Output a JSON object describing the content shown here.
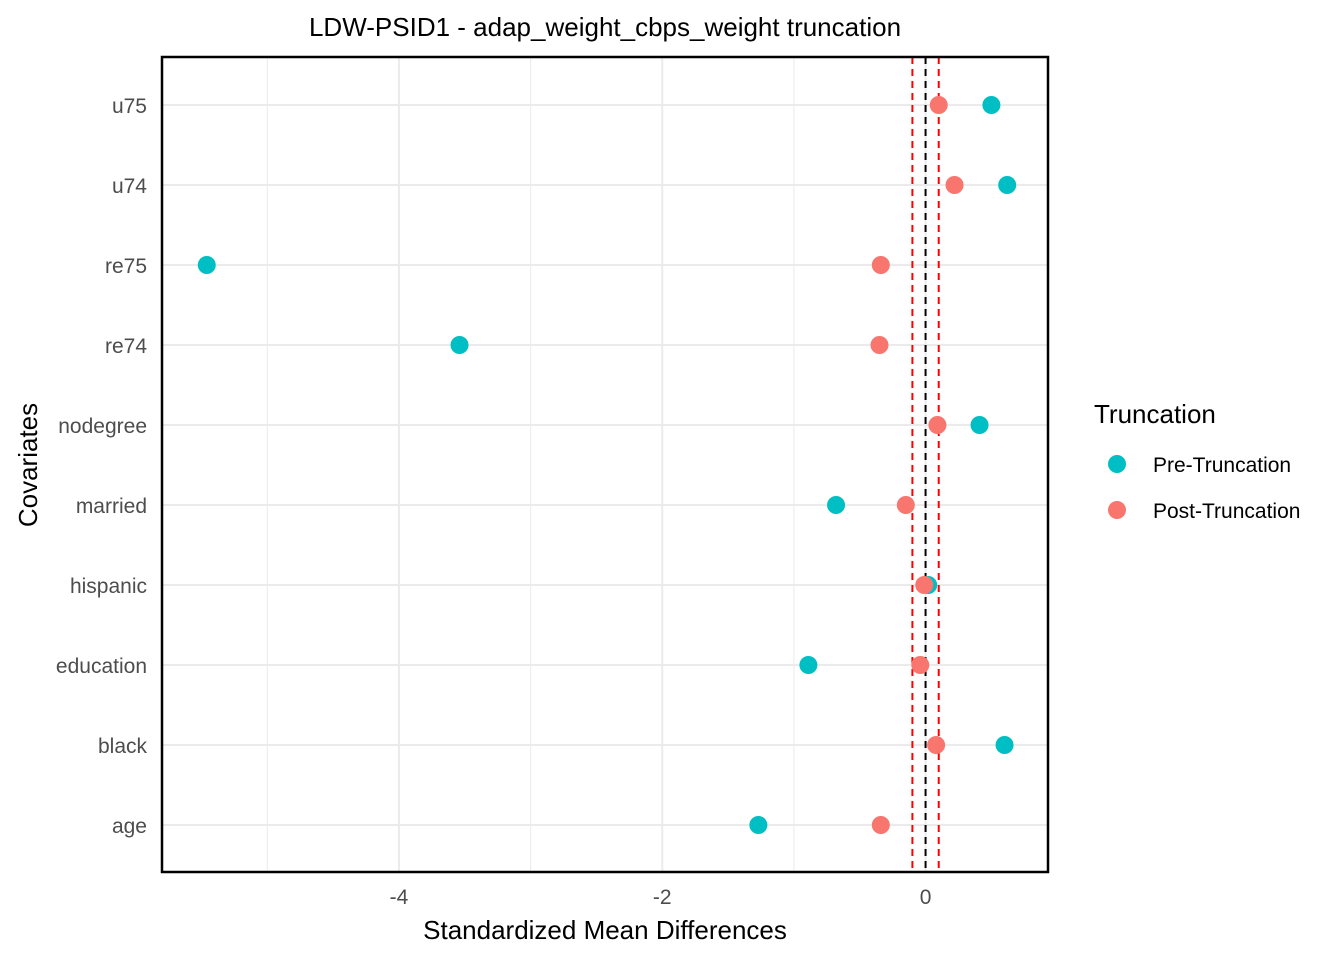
{
  "chart_data": {
    "type": "scatter",
    "title": "LDW-PSID1 - adap_weight_cbps_weight truncation",
    "xlabel": "Standardized Mean Differences",
    "ylabel": "Covariates",
    "categories": [
      "age",
      "black",
      "education",
      "hispanic",
      "married",
      "nodegree",
      "re74",
      "re75",
      "u74",
      "u75"
    ],
    "xlim": [
      -5.8,
      0.93
    ],
    "xticks": [
      -4,
      -2,
      0
    ],
    "xtick_labels": [
      "-4",
      "-2",
      "0"
    ],
    "grid": true,
    "legend": {
      "title": "Truncation",
      "placement": "right"
    },
    "series": [
      {
        "name": "Pre-Truncation",
        "color": "#00BFC4",
        "values": [
          -1.27,
          0.6,
          -0.89,
          0.02,
          -0.68,
          0.41,
          -3.54,
          -5.46,
          0.62,
          0.5
        ]
      },
      {
        "name": "Post-Truncation",
        "color": "#F8766D",
        "values": [
          -0.34,
          0.08,
          -0.04,
          -0.01,
          -0.15,
          0.09,
          -0.35,
          -0.34,
          0.22,
          0.1
        ]
      }
    ],
    "reference_lines": [
      {
        "value": 0,
        "style": "dashed",
        "color": "#000000"
      },
      {
        "value": -0.1,
        "style": "dashed",
        "color": "#FF0000"
      },
      {
        "value": 0.1,
        "style": "dashed",
        "color": "#FF0000"
      }
    ]
  }
}
